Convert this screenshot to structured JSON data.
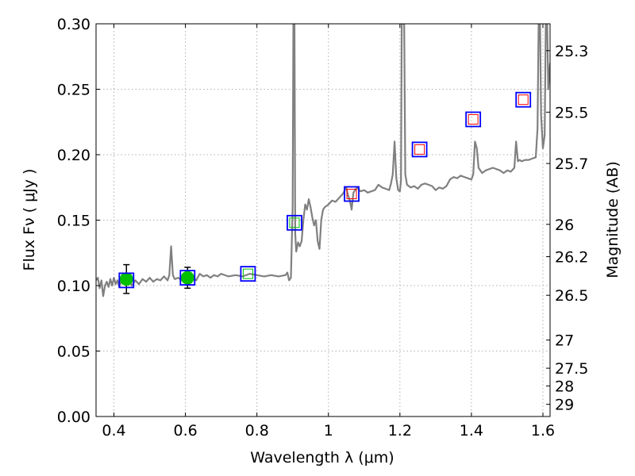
{
  "chart_data": {
    "type": "line",
    "xlabel": "Wavelength  λ (μm)",
    "ylabel": "Flux  Fν  ( μJy )",
    "y2label": "Magnitude (AB)",
    "xlim": [
      0.35,
      1.62
    ],
    "ylim": [
      0.0,
      0.3
    ],
    "grid": true,
    "x_ticks": [
      0.4,
      0.6,
      0.8,
      1.0,
      1.2,
      1.4,
      1.6
    ],
    "x_tick_labels": [
      "0.4",
      "0.6",
      "0.8",
      "1",
      "1.2",
      "1.4",
      "1.6"
    ],
    "y_ticks": [
      0.0,
      0.05,
      0.1,
      0.15,
      0.2,
      0.25,
      0.3
    ],
    "y_tick_labels": [
      "0.00",
      "0.05",
      "0.10",
      "0.15",
      "0.20",
      "0.25",
      "0.30"
    ],
    "y2_ticks": [
      {
        "label": "25.3",
        "flux": 0.2795
      },
      {
        "label": "25.5",
        "flux": 0.2325
      },
      {
        "label": "25.7",
        "flux": 0.1933
      },
      {
        "label": "26",
        "flux": 0.1468
      },
      {
        "label": "26.2",
        "flux": 0.1221
      },
      {
        "label": "26.5",
        "flux": 0.0926
      },
      {
        "label": "27",
        "flux": 0.0584
      },
      {
        "label": "27.5",
        "flux": 0.0369
      },
      {
        "label": "28",
        "flux": 0.0233
      },
      {
        "label": "29",
        "flux": 0.0093
      }
    ],
    "colors": {
      "spectrum": "#808080",
      "observed": "#00c000",
      "model_box": "#0000ff",
      "inner_green": "#00c000",
      "inner_red": "#ff0000",
      "grid": "#b0b0b0",
      "errorbar": "#000000"
    },
    "spectrum": [
      [
        0.35,
        0.104
      ],
      [
        0.355,
        0.106
      ],
      [
        0.36,
        0.098
      ],
      [
        0.365,
        0.104
      ],
      [
        0.37,
        0.092
      ],
      [
        0.375,
        0.1
      ],
      [
        0.38,
        0.103
      ],
      [
        0.385,
        0.099
      ],
      [
        0.39,
        0.105
      ],
      [
        0.395,
        0.1
      ],
      [
        0.4,
        0.106
      ],
      [
        0.405,
        0.101
      ],
      [
        0.41,
        0.104
      ],
      [
        0.415,
        0.099
      ],
      [
        0.42,
        0.103
      ],
      [
        0.43,
        0.102
      ],
      [
        0.44,
        0.105
      ],
      [
        0.45,
        0.1
      ],
      [
        0.46,
        0.104
      ],
      [
        0.47,
        0.101
      ],
      [
        0.48,
        0.105
      ],
      [
        0.49,
        0.103
      ],
      [
        0.5,
        0.106
      ],
      [
        0.51,
        0.103
      ],
      [
        0.52,
        0.105
      ],
      [
        0.53,
        0.104
      ],
      [
        0.54,
        0.107
      ],
      [
        0.55,
        0.104
      ],
      [
        0.555,
        0.108
      ],
      [
        0.56,
        0.13
      ],
      [
        0.565,
        0.108
      ],
      [
        0.57,
        0.105
      ],
      [
        0.58,
        0.106
      ],
      [
        0.59,
        0.104
      ],
      [
        0.6,
        0.107
      ],
      [
        0.61,
        0.105
      ],
      [
        0.62,
        0.106
      ],
      [
        0.63,
        0.104
      ],
      [
        0.64,
        0.109
      ],
      [
        0.65,
        0.107
      ],
      [
        0.66,
        0.108
      ],
      [
        0.67,
        0.106
      ],
      [
        0.68,
        0.108
      ],
      [
        0.69,
        0.107
      ],
      [
        0.7,
        0.109
      ],
      [
        0.72,
        0.107
      ],
      [
        0.74,
        0.108
      ],
      [
        0.76,
        0.107
      ],
      [
        0.78,
        0.109
      ],
      [
        0.8,
        0.108
      ],
      [
        0.82,
        0.107
      ],
      [
        0.84,
        0.108
      ],
      [
        0.86,
        0.107
      ],
      [
        0.88,
        0.108
      ],
      [
        0.885,
        0.11
      ],
      [
        0.89,
        0.104
      ],
      [
        0.895,
        0.106
      ],
      [
        0.9,
        0.16
      ],
      [
        0.902,
        0.3
      ],
      [
        0.905,
        0.3
      ],
      [
        0.907,
        0.14
      ],
      [
        0.91,
        0.126
      ],
      [
        0.915,
        0.133
      ],
      [
        0.92,
        0.13
      ],
      [
        0.925,
        0.134
      ],
      [
        0.93,
        0.15
      ],
      [
        0.935,
        0.162
      ],
      [
        0.94,
        0.158
      ],
      [
        0.945,
        0.166
      ],
      [
        0.95,
        0.16
      ],
      [
        0.955,
        0.152
      ],
      [
        0.96,
        0.146
      ],
      [
        0.965,
        0.15
      ],
      [
        0.97,
        0.134
      ],
      [
        0.975,
        0.128
      ],
      [
        0.98,
        0.15
      ],
      [
        0.985,
        0.158
      ],
      [
        0.99,
        0.16
      ],
      [
        1.0,
        0.162
      ],
      [
        1.01,
        0.165
      ],
      [
        1.02,
        0.164
      ],
      [
        1.03,
        0.167
      ],
      [
        1.04,
        0.17
      ],
      [
        1.05,
        0.175
      ],
      [
        1.055,
        0.169
      ],
      [
        1.06,
        0.165
      ],
      [
        1.065,
        0.158
      ],
      [
        1.07,
        0.171
      ],
      [
        1.08,
        0.175
      ],
      [
        1.09,
        0.172
      ],
      [
        1.1,
        0.173
      ],
      [
        1.11,
        0.171
      ],
      [
        1.12,
        0.172
      ],
      [
        1.13,
        0.173
      ],
      [
        1.14,
        0.177
      ],
      [
        1.15,
        0.175
      ],
      [
        1.16,
        0.174
      ],
      [
        1.17,
        0.173
      ],
      [
        1.175,
        0.178
      ],
      [
        1.18,
        0.185
      ],
      [
        1.185,
        0.21
      ],
      [
        1.19,
        0.182
      ],
      [
        1.195,
        0.173
      ],
      [
        1.2,
        0.172
      ],
      [
        1.203,
        0.18
      ],
      [
        1.205,
        0.3
      ],
      [
        1.212,
        0.3
      ],
      [
        1.215,
        0.185
      ],
      [
        1.22,
        0.177
      ],
      [
        1.23,
        0.175
      ],
      [
        1.24,
        0.176
      ],
      [
        1.25,
        0.174
      ],
      [
        1.26,
        0.177
      ],
      [
        1.27,
        0.178
      ],
      [
        1.28,
        0.177
      ],
      [
        1.29,
        0.176
      ],
      [
        1.3,
        0.173
      ],
      [
        1.31,
        0.175
      ],
      [
        1.32,
        0.174
      ],
      [
        1.33,
        0.176
      ],
      [
        1.34,
        0.181
      ],
      [
        1.35,
        0.183
      ],
      [
        1.36,
        0.182
      ],
      [
        1.37,
        0.184
      ],
      [
        1.38,
        0.183
      ],
      [
        1.39,
        0.182
      ],
      [
        1.4,
        0.181
      ],
      [
        1.405,
        0.185
      ],
      [
        1.41,
        0.21
      ],
      [
        1.415,
        0.205
      ],
      [
        1.42,
        0.19
      ],
      [
        1.43,
        0.186
      ],
      [
        1.44,
        0.188
      ],
      [
        1.45,
        0.189
      ],
      [
        1.46,
        0.19
      ],
      [
        1.47,
        0.189
      ],
      [
        1.48,
        0.188
      ],
      [
        1.49,
        0.186
      ],
      [
        1.5,
        0.188
      ],
      [
        1.51,
        0.187
      ],
      [
        1.52,
        0.19
      ],
      [
        1.525,
        0.21
      ],
      [
        1.53,
        0.195
      ],
      [
        1.535,
        0.196
      ],
      [
        1.54,
        0.195
      ],
      [
        1.55,
        0.196
      ],
      [
        1.56,
        0.196
      ],
      [
        1.57,
        0.197
      ],
      [
        1.58,
        0.198
      ],
      [
        1.585,
        0.22
      ],
      [
        1.588,
        0.3
      ],
      [
        1.592,
        0.3
      ],
      [
        1.595,
        0.23
      ],
      [
        1.6,
        0.205
      ],
      [
        1.605,
        0.215
      ],
      [
        1.608,
        0.3
      ],
      [
        1.612,
        0.3
      ],
      [
        1.615,
        0.25
      ],
      [
        1.62,
        0.27
      ]
    ],
    "observed_points": [
      {
        "x": 0.435,
        "y": 0.105,
        "err": 0.011
      },
      {
        "x": 0.606,
        "y": 0.106,
        "err": 0.008
      }
    ],
    "model_points": [
      {
        "x": 0.435,
        "y": 0.104,
        "inner": "none"
      },
      {
        "x": 0.606,
        "y": 0.106,
        "inner": "none"
      },
      {
        "x": 0.775,
        "y": 0.109,
        "inner": "green"
      },
      {
        "x": 0.905,
        "y": 0.148,
        "inner": "green"
      },
      {
        "x": 1.065,
        "y": 0.17,
        "inner": "red"
      },
      {
        "x": 1.255,
        "y": 0.204,
        "inner": "red"
      },
      {
        "x": 1.405,
        "y": 0.227,
        "inner": "red"
      },
      {
        "x": 1.545,
        "y": 0.242,
        "inner": "red"
      }
    ]
  }
}
